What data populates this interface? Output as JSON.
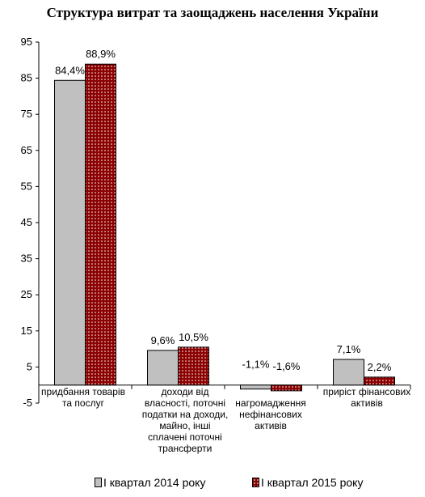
{
  "chart_data": {
    "type": "bar",
    "title": "Структура витрат  та заощаджень населення України",
    "categories": [
      "придбання товарів та послуг",
      "доходи від власності, поточні податки на доходи, майно, інші сплачені поточні трансферти",
      "нагромадження нефінансових активів",
      "приріст фінансових активів"
    ],
    "series": [
      {
        "name": "І квартал 2014 року",
        "values": [
          84.4,
          9.6,
          -1.1,
          7.1
        ],
        "labels": [
          "84,4%",
          "9,6%",
          "-1,1%",
          "7,1%"
        ],
        "color": "#c0c0c0"
      },
      {
        "name": "І квартал 2015 року",
        "values": [
          88.9,
          10.5,
          -1.6,
          2.2
        ],
        "labels": [
          "88,9%",
          "10,5%",
          "-1,6%",
          "2,2%"
        ],
        "color": "#8b0000"
      }
    ],
    "ylim": [
      -5,
      95
    ],
    "yticks": [
      "-5",
      "5",
      "15",
      "25",
      "35",
      "45",
      "55",
      "65",
      "75",
      "85",
      "95"
    ],
    "grid": false,
    "legend": "bottom"
  }
}
